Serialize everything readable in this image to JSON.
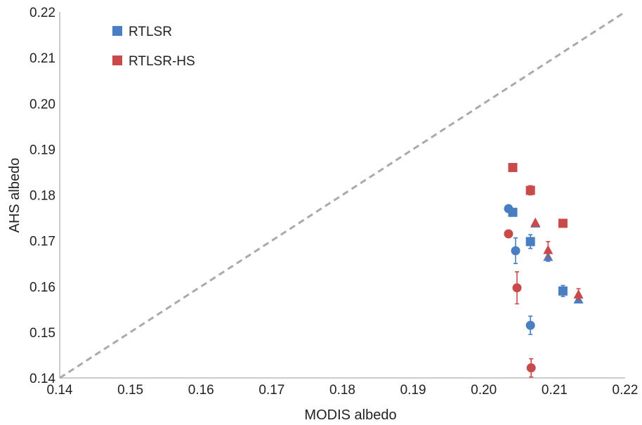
{
  "chart_data": {
    "type": "scatter",
    "title": "",
    "xlabel": "MODIS albedo",
    "ylabel": "AHS albedo",
    "xlim": [
      0.14,
      0.22
    ],
    "ylim": [
      0.14,
      0.22
    ],
    "x_ticks": [
      "0.14",
      "0.15",
      "0.16",
      "0.17",
      "0.18",
      "0.19",
      "0.20",
      "0.21",
      "0.22"
    ],
    "y_ticks": [
      "0.14",
      "0.15",
      "0.16",
      "0.17",
      "0.18",
      "0.19",
      "0.20",
      "0.21",
      "0.22"
    ],
    "grid": false,
    "legend_position": "top-left",
    "reference_line": {
      "from": [
        0.14,
        0.14
      ],
      "to": [
        0.22,
        0.22
      ],
      "style": "dashed",
      "color": "#aaaaaa"
    },
    "series": [
      {
        "name": "RTLSR",
        "color": "#4a7ec3",
        "points": [
          {
            "x": 0.2035,
            "y": 0.177,
            "marker": "circle",
            "err": 0.0
          },
          {
            "x": 0.2045,
            "y": 0.1678,
            "marker": "circle",
            "err": 0.0028
          },
          {
            "x": 0.2066,
            "y": 0.1515,
            "marker": "circle",
            "err": 0.002
          },
          {
            "x": 0.2041,
            "y": 0.1762,
            "marker": "square",
            "err": 0.0
          },
          {
            "x": 0.2066,
            "y": 0.1698,
            "marker": "square",
            "err": 0.0015
          },
          {
            "x": 0.2112,
            "y": 0.159,
            "marker": "square",
            "err": 0.0012
          },
          {
            "x": 0.2073,
            "y": 0.1738,
            "marker": "triangle",
            "err": 0.0
          },
          {
            "x": 0.2091,
            "y": 0.1665,
            "marker": "triangle",
            "err": 0.001
          },
          {
            "x": 0.2134,
            "y": 0.1572,
            "marker": "triangle",
            "err": 0.0008
          }
        ]
      },
      {
        "name": "RTLSR-HS",
        "color": "#c94a4a",
        "points": [
          {
            "x": 0.2035,
            "y": 0.1715,
            "marker": "circle",
            "err": 0.0008
          },
          {
            "x": 0.2047,
            "y": 0.1597,
            "marker": "circle",
            "err": 0.0035
          },
          {
            "x": 0.2067,
            "y": 0.1422,
            "marker": "circle",
            "err": 0.002
          },
          {
            "x": 0.2041,
            "y": 0.186,
            "marker": "square",
            "err": 0.0
          },
          {
            "x": 0.2066,
            "y": 0.181,
            "marker": "square",
            "err": 0.001
          },
          {
            "x": 0.2112,
            "y": 0.1738,
            "marker": "square",
            "err": 0.0008
          },
          {
            "x": 0.2073,
            "y": 0.174,
            "marker": "triangle",
            "err": 0.0
          },
          {
            "x": 0.2091,
            "y": 0.168,
            "marker": "triangle",
            "err": 0.0018
          },
          {
            "x": 0.2134,
            "y": 0.1583,
            "marker": "triangle",
            "err": 0.0012
          }
        ]
      }
    ]
  }
}
